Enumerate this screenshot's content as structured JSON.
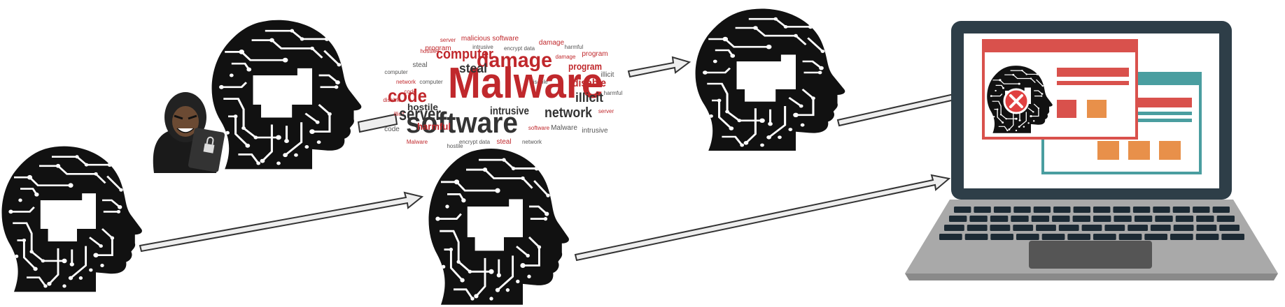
{
  "diagram": {
    "colors": {
      "circuit": "#111111",
      "arrow_fill": "#eeeeee",
      "arrow_stroke": "#333333",
      "word_red": "#c0282c",
      "word_dark": "#333333",
      "laptop_frame": "#2e3e48",
      "laptop_body": "#a9a9a9",
      "window_red": "#d9514c",
      "window_teal": "#4a9ea0",
      "tile_orange": "#e8904a",
      "alert_red": "#e04040"
    },
    "nodes": [
      {
        "id": "head-start",
        "icon": "circuit-head-icon"
      },
      {
        "id": "head-attacker",
        "icon": "circuit-head-icon"
      },
      {
        "id": "hacker",
        "icon": "hacker-with-laptop-icon"
      },
      {
        "id": "malware-cloud",
        "icon": "malware-word-cloud"
      },
      {
        "id": "head-infected",
        "icon": "circuit-head-icon"
      },
      {
        "id": "head-clean",
        "icon": "circuit-head-icon"
      },
      {
        "id": "laptop",
        "icon": "laptop-icon"
      }
    ],
    "edges": [
      {
        "from": "head-start",
        "to": "head-clean"
      },
      {
        "from": "head-attacker",
        "to": "malware-cloud"
      },
      {
        "from": "malware-cloud",
        "to": "head-infected"
      },
      {
        "from": "head-infected",
        "to": "laptop"
      },
      {
        "from": "head-clean",
        "to": "laptop"
      }
    ]
  },
  "wordcloud": {
    "main": "Malware",
    "big": [
      "software",
      "damage",
      "computer",
      "code",
      "server",
      "network",
      "illicit",
      "disable",
      "program",
      "steal",
      "intrusive",
      "harmful",
      "hostile"
    ],
    "small": [
      "malicious software",
      "encrypt data",
      "hostile",
      "steal",
      "network",
      "computer",
      "program",
      "harmful",
      "illicit",
      "code",
      "server",
      "intrusive",
      "damage",
      "disable",
      "software",
      "Malware",
      "Malware",
      "encrypt data",
      "steal",
      "network",
      "code",
      "intrusive",
      "server",
      "harmful",
      "program",
      "computer",
      "disable",
      "illicit",
      "damage",
      "hostile"
    ]
  }
}
